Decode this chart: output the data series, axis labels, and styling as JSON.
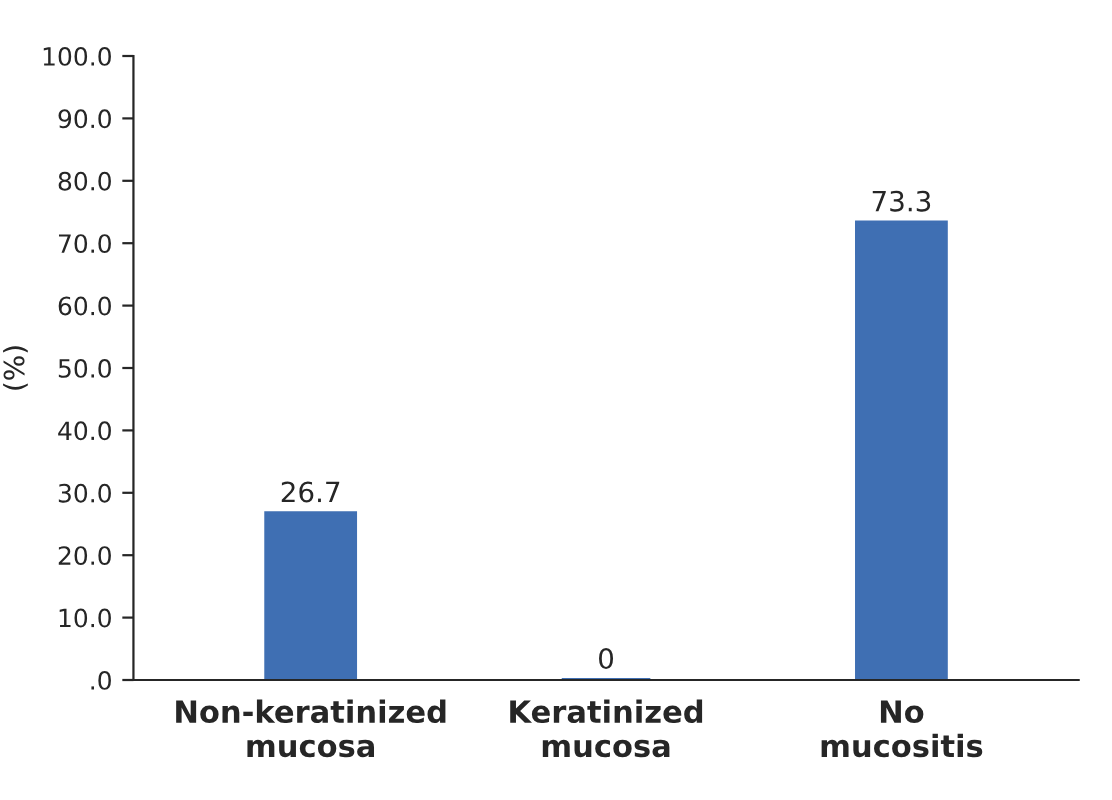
{
  "chart_data": {
    "type": "bar",
    "ylabel": "(%)",
    "categories": [
      "Non-keratinized\nmucosa",
      "Keratinized\nmucosa",
      "No\nmucositis"
    ],
    "values": [
      26.7,
      0,
      73.3
    ],
    "color": "#3f6fb3",
    "ylim": [
      0,
      100
    ],
    "yticks": [
      {
        "value": 0,
        "label": ".0"
      },
      {
        "value": 10,
        "label": "10.0"
      },
      {
        "value": 20,
        "label": "20.0"
      },
      {
        "value": 30,
        "label": "30.0"
      },
      {
        "value": 40,
        "label": "40.0"
      },
      {
        "value": 50,
        "label": "50.0"
      },
      {
        "value": 60,
        "label": "60.0"
      },
      {
        "value": 70,
        "label": "70.0"
      },
      {
        "value": 80,
        "label": "80.0"
      },
      {
        "value": 90,
        "label": "90.0"
      },
      {
        "value": 100,
        "label": "100.0"
      }
    ],
    "data_labels": true,
    "grid": false,
    "legend": false
  }
}
